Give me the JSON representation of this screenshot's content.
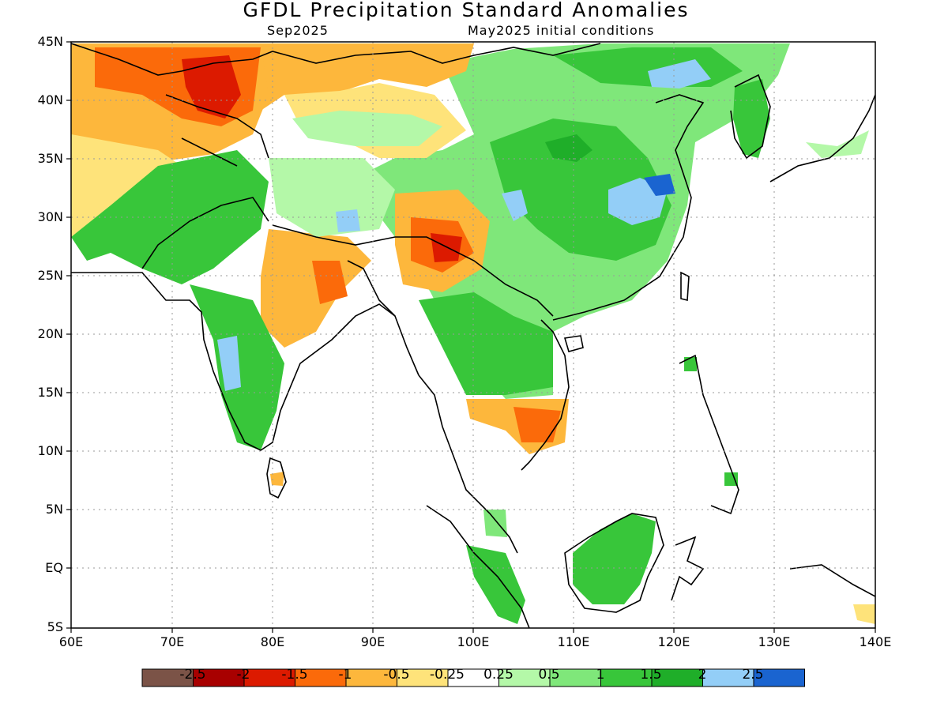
{
  "title": "GFDL Precipitation Standard Anomalies",
  "subtitle_left": "Sep2025",
  "subtitle_right": "May2025 initial conditions",
  "lat_labels": [
    "45N",
    "40N",
    "35N",
    "30N",
    "25N",
    "20N",
    "15N",
    "10N",
    "5N",
    "EQ",
    "5S"
  ],
  "lon_labels": [
    "60E",
    "70E",
    "80E",
    "90E",
    "100E",
    "110E",
    "120E",
    "130E",
    "140E"
  ],
  "colorbar": {
    "colors": [
      "#7b5347",
      "#a80000",
      "#dc1a00",
      "#fb6a0a",
      "#fdb73c",
      "#fee37a",
      "#ffffff",
      "#b4f8a8",
      "#7fe77a",
      "#38c63a",
      "#1fae29",
      "#93cef7",
      "#1a64d0"
    ],
    "labels": [
      "-2.5",
      "-2",
      "-1.5",
      "-1",
      "-0.5",
      "-0.25",
      "0.25",
      "0.5",
      "1",
      "1.5",
      "2",
      "2.5"
    ]
  }
}
